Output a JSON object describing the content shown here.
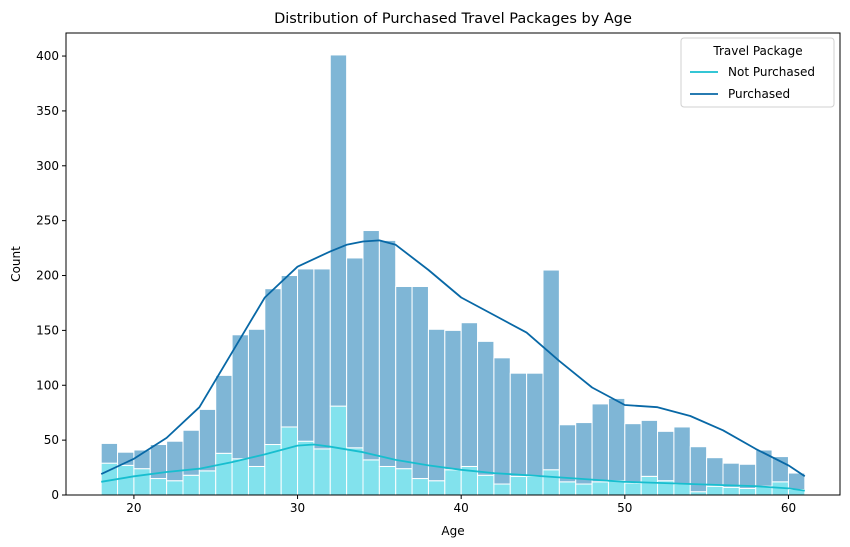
{
  "chart_data": {
    "type": "bar",
    "title": "Distribution of Purchased Travel Packages by Age",
    "xlabel": "Age",
    "ylabel": "Count",
    "xlim": [
      15.85,
      63.15
    ],
    "ylim": [
      0,
      421
    ],
    "xticks": [
      20,
      30,
      40,
      50,
      60
    ],
    "yticks": [
      0,
      50,
      100,
      150,
      200,
      250,
      300,
      350,
      400
    ],
    "bins": {
      "start": 18,
      "width": 1.0,
      "count": 43
    },
    "legend": {
      "title": "Travel Package",
      "position": "top-right"
    },
    "series": [
      {
        "name": "Not Purchased",
        "color": "#17becf",
        "bar_color": "#82e2ed",
        "values": [
          29,
          27,
          24,
          15,
          13,
          18,
          22,
          38,
          33,
          26,
          46,
          62,
          49,
          42,
          81,
          43,
          32,
          26,
          24,
          15,
          13,
          23,
          26,
          18,
          10,
          17,
          17,
          23,
          12,
          10,
          12,
          13,
          11,
          17,
          13,
          10,
          3,
          8,
          7,
          6,
          8,
          12,
          5
        ],
        "kde": [
          [
            18,
            12
          ],
          [
            20,
            17
          ],
          [
            22,
            21
          ],
          [
            24,
            24
          ],
          [
            26,
            30
          ],
          [
            28,
            37
          ],
          [
            30,
            45
          ],
          [
            31,
            46
          ],
          [
            32,
            44
          ],
          [
            34,
            39
          ],
          [
            36,
            32
          ],
          [
            38,
            27
          ],
          [
            40,
            23
          ],
          [
            42,
            20
          ],
          [
            44,
            18
          ],
          [
            46,
            16
          ],
          [
            48,
            14
          ],
          [
            50,
            12
          ],
          [
            52,
            11
          ],
          [
            54,
            10
          ],
          [
            56,
            9
          ],
          [
            58,
            8
          ],
          [
            60,
            6
          ],
          [
            61,
            4
          ]
        ]
      },
      {
        "name": "Purchased",
        "color": "#0868a6",
        "bar_color": "#7fb6d6",
        "values": [
          18,
          12,
          17,
          31,
          36,
          41,
          56,
          71,
          113,
          125,
          142,
          138,
          157,
          164,
          320,
          173,
          209,
          206,
          166,
          175,
          138,
          127,
          131,
          122,
          115,
          94,
          94,
          182,
          52,
          56,
          71,
          75,
          54,
          51,
          45,
          52,
          41,
          26,
          22,
          22,
          33,
          23,
          15
        ],
        "kde": [
          [
            18,
            19
          ],
          [
            20,
            33
          ],
          [
            22,
            52
          ],
          [
            24,
            80
          ],
          [
            26,
            130
          ],
          [
            28,
            180
          ],
          [
            30,
            208
          ],
          [
            32,
            222
          ],
          [
            33,
            228
          ],
          [
            34,
            231
          ],
          [
            35,
            232
          ],
          [
            36,
            228
          ],
          [
            38,
            205
          ],
          [
            40,
            180
          ],
          [
            42,
            164
          ],
          [
            44,
            148
          ],
          [
            46,
            122
          ],
          [
            48,
            98
          ],
          [
            50,
            82
          ],
          [
            52,
            80
          ],
          [
            54,
            72
          ],
          [
            56,
            59
          ],
          [
            58,
            42
          ],
          [
            60,
            27
          ],
          [
            61,
            17
          ]
        ]
      }
    ]
  }
}
